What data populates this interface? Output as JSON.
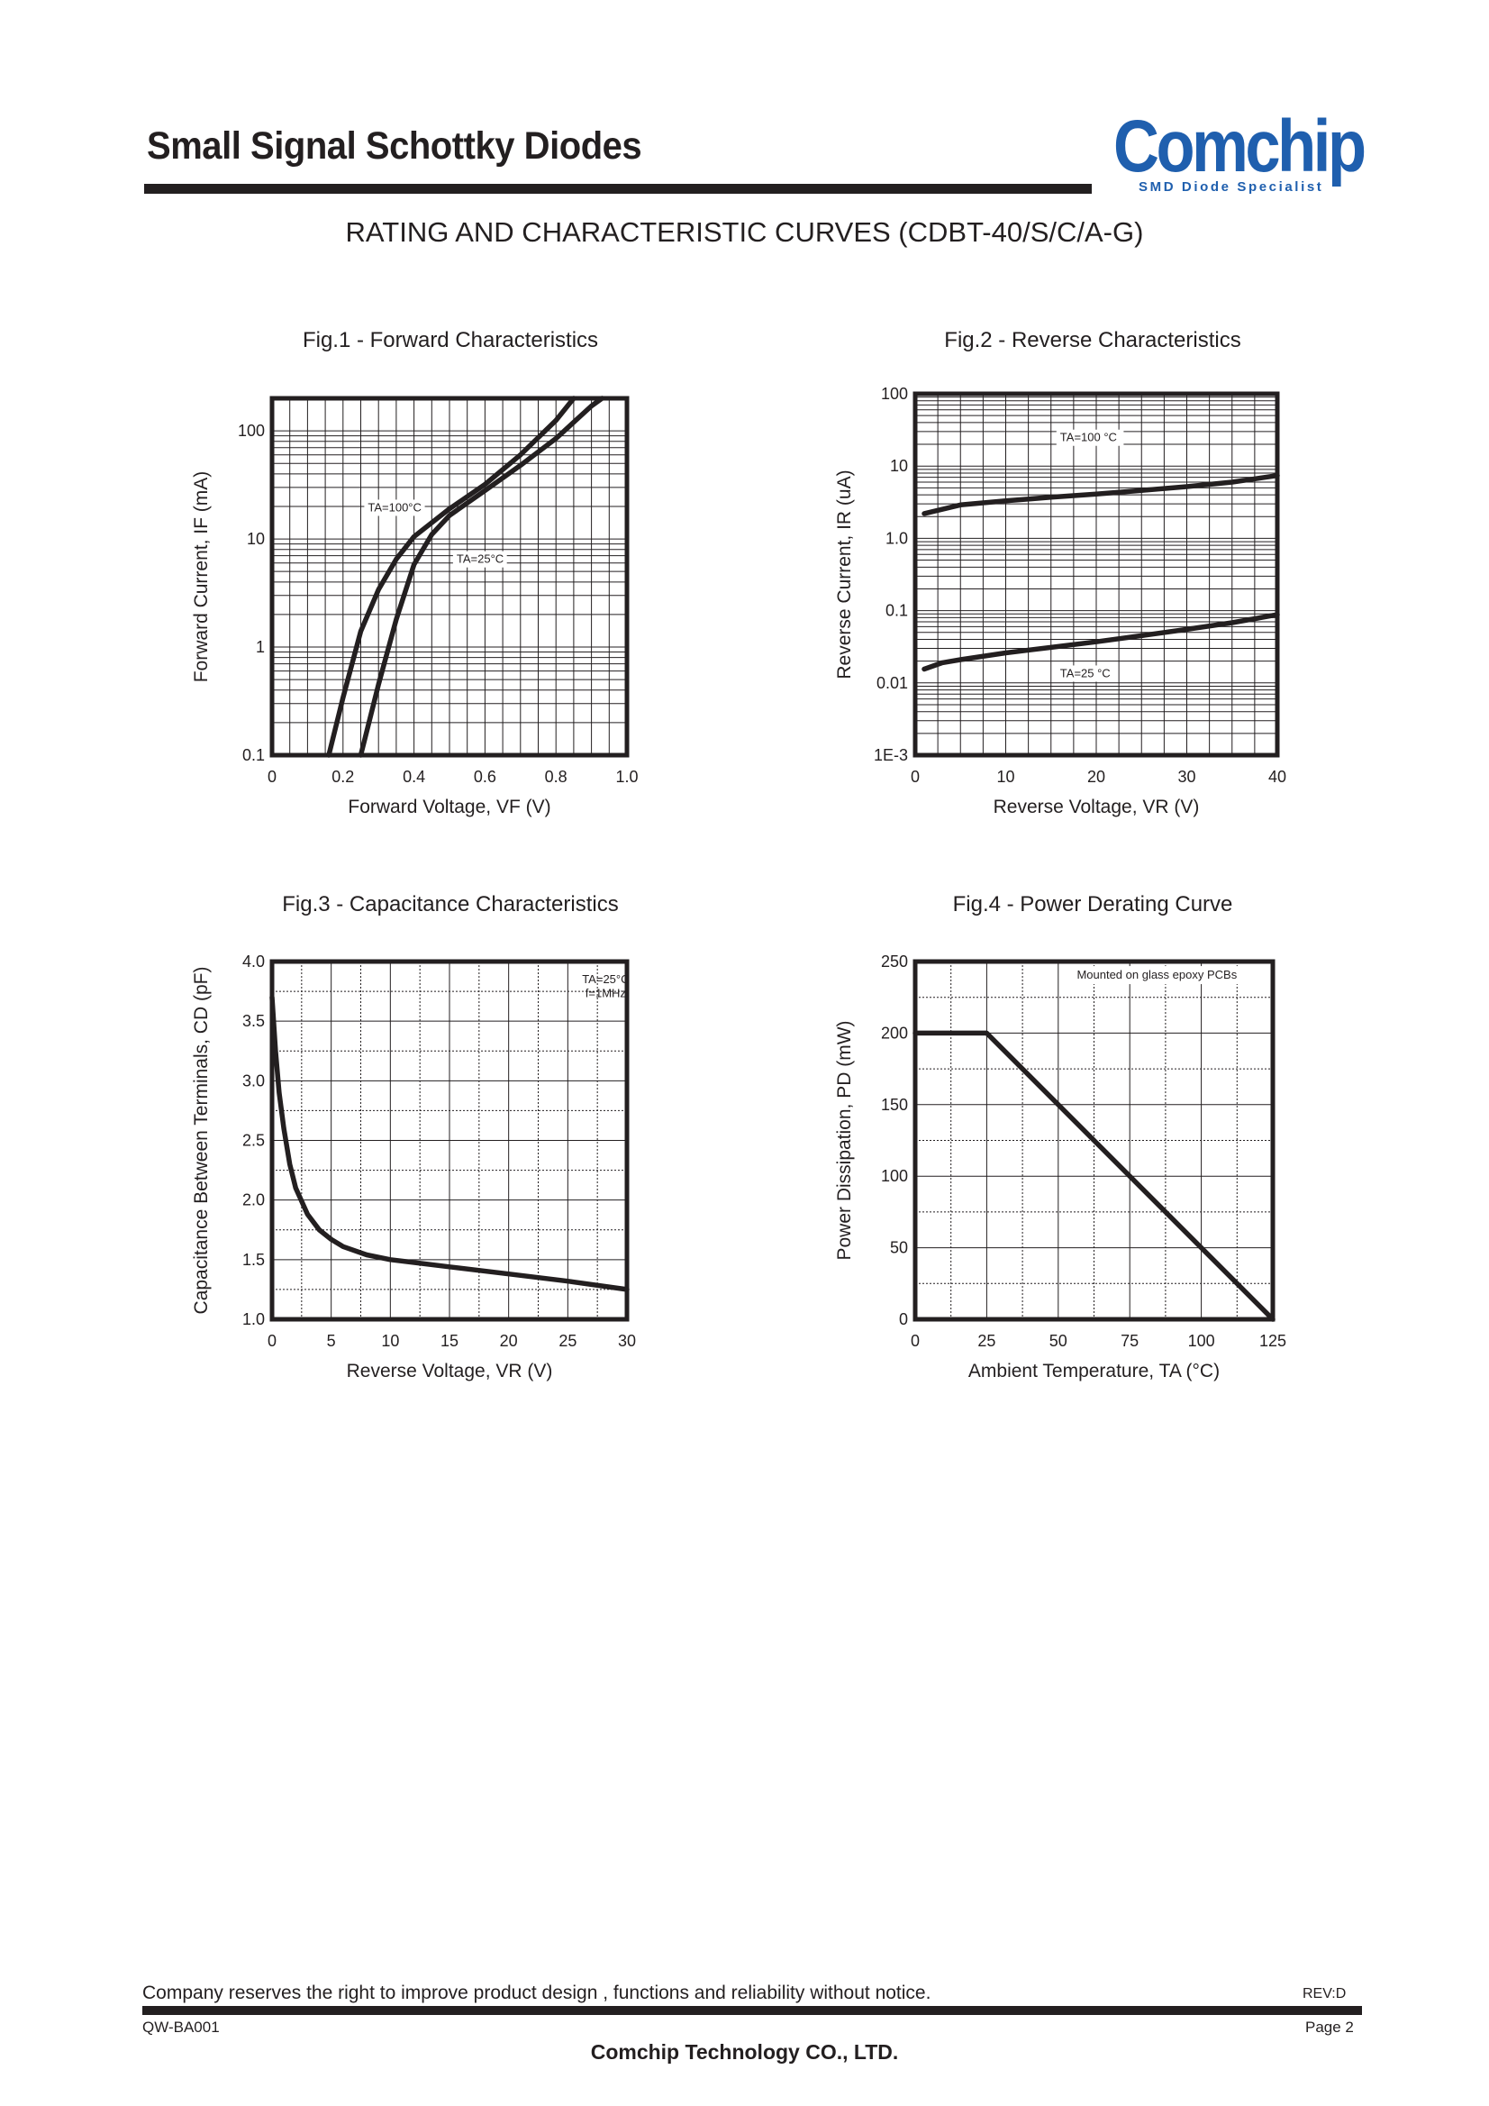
{
  "header": {
    "title": "Small Signal Schottky Diodes",
    "logo_text": "Comchip",
    "logo_tagline": "SMD Diode Specialist",
    "brand_color": "#1f5fae"
  },
  "section_heading": "RATING AND CHARACTERISTIC CURVES (CDBT-40/S/C/A-G)",
  "chart_data": [
    {
      "type": "line",
      "title": "Fig.1 - Forward Characteristics",
      "xlabel": "Forward Voltage, VF (V)",
      "ylabel": "Forward Current, IF (mA)",
      "xlim": [
        0,
        1.0
      ],
      "ylim": [
        0.1,
        200
      ],
      "yscale": "log",
      "grid": true,
      "x_ticks": [
        "0",
        "0.2",
        "0.4",
        "0.6",
        "0.8",
        "1.0"
      ],
      "y_ticks": [
        "0.1",
        "1",
        "10",
        "100"
      ],
      "series": [
        {
          "name": "TA=100°C",
          "points": [
            [
              0.16,
              0.1
            ],
            [
              0.2,
              0.34
            ],
            [
              0.25,
              1.4
            ],
            [
              0.3,
              3.4
            ],
            [
              0.35,
              6.5
            ],
            [
              0.4,
              10.5
            ],
            [
              0.5,
              19
            ],
            [
              0.6,
              32
            ],
            [
              0.7,
              60
            ],
            [
              0.8,
              125
            ],
            [
              0.85,
              200
            ]
          ]
        },
        {
          "name": "TA=25°C",
          "points": [
            [
              0.25,
              0.1
            ],
            [
              0.3,
              0.45
            ],
            [
              0.35,
              1.8
            ],
            [
              0.4,
              5.8
            ],
            [
              0.45,
              11
            ],
            [
              0.5,
              16.5
            ],
            [
              0.6,
              28
            ],
            [
              0.7,
              48
            ],
            [
              0.8,
              85
            ],
            [
              0.9,
              170
            ],
            [
              0.93,
              200
            ]
          ]
        }
      ]
    },
    {
      "type": "line",
      "title": "Fig.2 - Reverse Characteristics",
      "xlabel": "Reverse Voltage, VR (V)",
      "ylabel": "Reverse Current, IR (uA)",
      "xlim": [
        0,
        40
      ],
      "ylim": [
        0.001,
        100
      ],
      "yscale": "log",
      "grid": true,
      "x_ticks": [
        "0",
        "10",
        "20",
        "30",
        "40"
      ],
      "y_ticks": [
        "1E-3",
        "0.01",
        "0.1",
        "1.0",
        "10",
        "100"
      ],
      "series": [
        {
          "name": "TA=100 °C",
          "points": [
            [
              1,
              2.2
            ],
            [
              5,
              2.9
            ],
            [
              10,
              3.3
            ],
            [
              15,
              3.7
            ],
            [
              20,
              4.1
            ],
            [
              25,
              4.6
            ],
            [
              30,
              5.2
            ],
            [
              35,
              6.0
            ],
            [
              40,
              7.4
            ]
          ]
        },
        {
          "name": "TA=25 °C",
          "points": [
            [
              1,
              0.0155
            ],
            [
              3,
              0.019
            ],
            [
              5,
              0.021
            ],
            [
              10,
              0.026
            ],
            [
              15,
              0.031
            ],
            [
              20,
              0.037
            ],
            [
              25,
              0.045
            ],
            [
              30,
              0.055
            ],
            [
              35,
              0.068
            ],
            [
              40,
              0.088
            ]
          ]
        }
      ]
    },
    {
      "type": "line",
      "title": "Fig.3 - Capacitance Characteristics",
      "xlabel": "Reverse Voltage, VR (V)",
      "ylabel": "Capacitance Between Terminals, CD (pF)",
      "xlim": [
        0,
        30
      ],
      "ylim": [
        1.0,
        4.0
      ],
      "yscale": "linear",
      "grid": true,
      "x_ticks": [
        "0",
        "5",
        "10",
        "15",
        "20",
        "25",
        "30"
      ],
      "y_ticks": [
        "1.0",
        "1.5",
        "2.0",
        "2.5",
        "3.0",
        "3.5",
        "4.0"
      ],
      "annotations": [
        "TA=25°C",
        "f=1MHz"
      ],
      "series": [
        {
          "points": [
            [
              0,
              3.7
            ],
            [
              0.3,
              3.25
            ],
            [
              0.6,
              2.9
            ],
            [
              1,
              2.6
            ],
            [
              1.5,
              2.3
            ],
            [
              2,
              2.1
            ],
            [
              3,
              1.88
            ],
            [
              4,
              1.75
            ],
            [
              5,
              1.67
            ],
            [
              6,
              1.61
            ],
            [
              8,
              1.54
            ],
            [
              10,
              1.5
            ],
            [
              15,
              1.44
            ],
            [
              20,
              1.38
            ],
            [
              25,
              1.32
            ],
            [
              30,
              1.25
            ]
          ]
        }
      ]
    },
    {
      "type": "line",
      "title": "Fig.4 - Power Derating Curve",
      "xlabel": "Ambient Temperature, TA (°C)",
      "ylabel": "Power Dissipation, PD (mW)",
      "xlim": [
        0,
        125
      ],
      "ylim": [
        0,
        250
      ],
      "yscale": "linear",
      "grid": true,
      "x_ticks": [
        "0",
        "25",
        "50",
        "75",
        "100",
        "125"
      ],
      "y_ticks": [
        "0",
        "50",
        "100",
        "150",
        "200",
        "250"
      ],
      "annotations": [
        "Mounted on glass epoxy PCBs"
      ],
      "series": [
        {
          "points": [
            [
              0,
              200
            ],
            [
              25,
              200
            ],
            [
              125,
              0
            ]
          ]
        }
      ]
    }
  ],
  "footer": {
    "note": "Company reserves the right to improve product design , functions and reliability without notice.",
    "rev": "REV:D",
    "doc_code": "QW-BA001",
    "page": "Page 2",
    "company": "Comchip Technology CO., LTD."
  }
}
